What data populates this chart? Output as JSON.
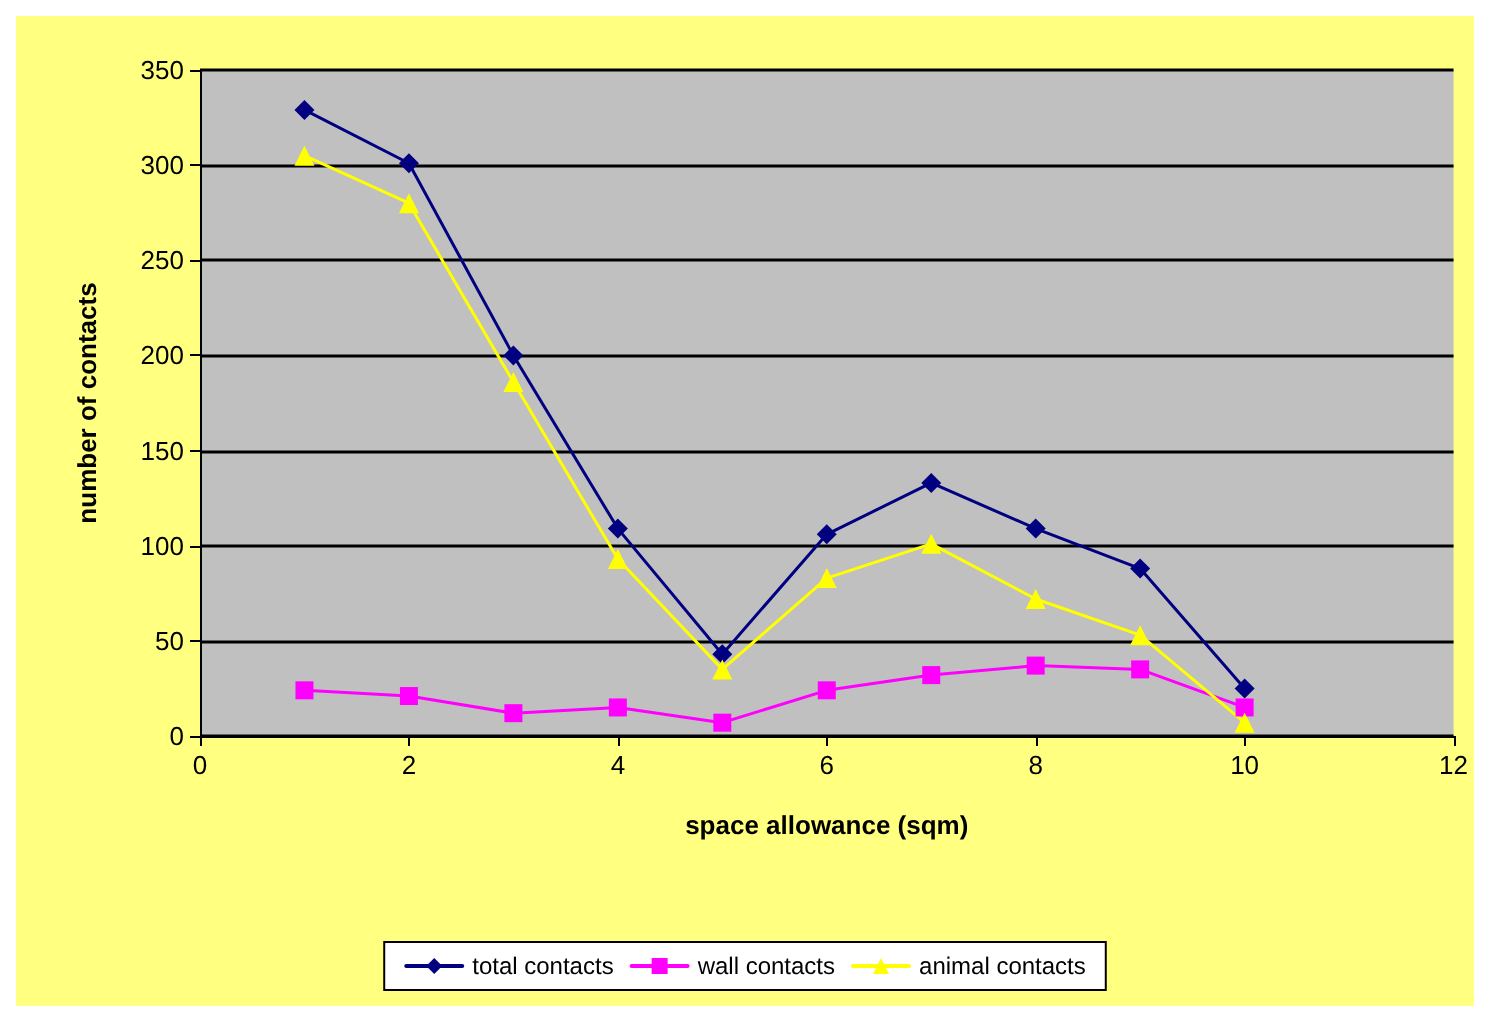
{
  "chart_data": {
    "type": "line",
    "xlabel": "space allowance (sqm)",
    "ylabel": "number of contacts",
    "x": [
      1,
      2,
      3,
      4,
      5,
      6,
      7,
      8,
      9,
      10
    ],
    "series": [
      {
        "name": "total contacts",
        "color": "#000080",
        "marker": "diamond",
        "values": [
          329,
          301,
          200,
          109,
          43,
          106,
          133,
          109,
          88,
          25
        ]
      },
      {
        "name": "wall contacts",
        "color": "#ff00ff",
        "marker": "square",
        "values": [
          24,
          21,
          12,
          15,
          7,
          24,
          32,
          37,
          35,
          15
        ]
      },
      {
        "name": "animal contacts",
        "color": "#ffff00",
        "marker": "triangle",
        "values": [
          305,
          280,
          186,
          93,
          35,
          83,
          101,
          72,
          53,
          7
        ]
      }
    ],
    "xlim": [
      0,
      12
    ],
    "xticks": [
      0,
      2,
      4,
      6,
      8,
      10,
      12
    ],
    "ylim": [
      0,
      350
    ],
    "yticks": [
      0,
      50,
      100,
      150,
      200,
      250,
      300,
      350
    ],
    "grid": "y",
    "legend": "bottom"
  }
}
